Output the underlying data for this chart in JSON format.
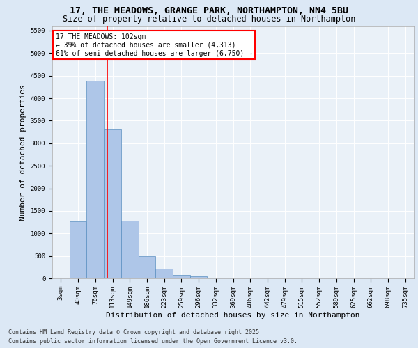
{
  "title_line1": "17, THE MEADOWS, GRANGE PARK, NORTHAMPTON, NN4 5BU",
  "title_line2": "Size of property relative to detached houses in Northampton",
  "xlabel": "Distribution of detached houses by size in Northampton",
  "ylabel": "Number of detached properties",
  "categories": [
    "3sqm",
    "40sqm",
    "76sqm",
    "113sqm",
    "149sqm",
    "186sqm",
    "223sqm",
    "259sqm",
    "296sqm",
    "332sqm",
    "369sqm",
    "406sqm",
    "442sqm",
    "479sqm",
    "515sqm",
    "552sqm",
    "589sqm",
    "625sqm",
    "662sqm",
    "698sqm",
    "735sqm"
  ],
  "values": [
    0,
    1270,
    4380,
    3300,
    1280,
    500,
    215,
    75,
    40,
    0,
    0,
    0,
    0,
    0,
    0,
    0,
    0,
    0,
    0,
    0,
    0
  ],
  "bar_color": "#aec6e8",
  "bar_edge_color": "#5a8fc0",
  "vline_color": "red",
  "annotation_text": "17 THE MEADOWS: 102sqm\n← 39% of detached houses are smaller (4,313)\n61% of semi-detached houses are larger (6,750) →",
  "box_color": "red",
  "ylim": [
    0,
    5600
  ],
  "yticks": [
    0,
    500,
    1000,
    1500,
    2000,
    2500,
    3000,
    3500,
    4000,
    4500,
    5000,
    5500
  ],
  "footer_line1": "Contains HM Land Registry data © Crown copyright and database right 2025.",
  "footer_line2": "Contains public sector information licensed under the Open Government Licence v3.0.",
  "bg_color": "#dce8f5",
  "plot_bg_color": "#eaf1f8",
  "title_fontsize": 9.5,
  "subtitle_fontsize": 8.5,
  "label_fontsize": 8,
  "tick_fontsize": 6.5,
  "annotation_fontsize": 7,
  "footer_fontsize": 6
}
